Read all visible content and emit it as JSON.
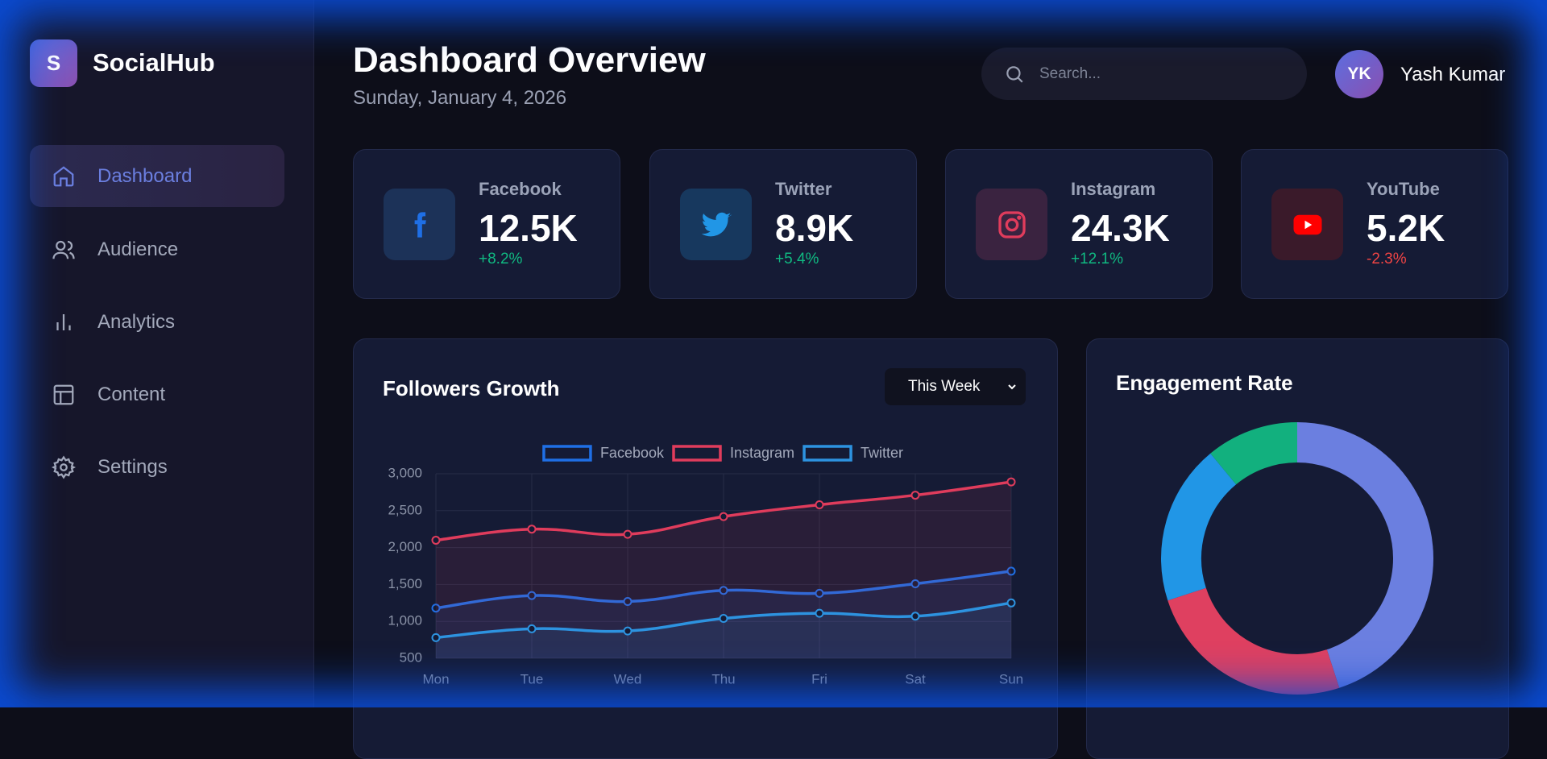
{
  "brand": {
    "logo": "S",
    "name": "SocialHub"
  },
  "nav": [
    "Dashboard",
    "Audience",
    "Analytics",
    "Content",
    "Settings"
  ],
  "header": {
    "title": "Dashboard Overview",
    "date": "Sunday, January 4, 2026",
    "search_placeholder": "Search...",
    "user_initials": "YK",
    "user_name": "Yash Kumar"
  },
  "stats": [
    {
      "platform": "Facebook",
      "value": "12.5K",
      "change": "+8.2%"
    },
    {
      "platform": "Twitter",
      "value": "8.9K",
      "change": "+5.4%"
    },
    {
      "platform": "Instagram",
      "value": "24.3K",
      "change": "+12.1%"
    },
    {
      "platform": "YouTube",
      "value": "5.2K",
      "change": "-2.3%"
    }
  ],
  "chart_data": [
    {
      "type": "line",
      "title": "Followers Growth",
      "period": "This Week",
      "categories": [
        "Mon",
        "Tue",
        "Wed",
        "Thu",
        "Fri",
        "Sat",
        "Sun"
      ],
      "series": [
        {
          "name": "Facebook",
          "color": "#1f6fe5",
          "values": [
            1180,
            1350,
            1270,
            1420,
            1380,
            1510,
            1680
          ]
        },
        {
          "name": "Instagram",
          "color": "#e03c5c",
          "values": [
            2100,
            2250,
            2180,
            2420,
            2580,
            2710,
            2890
          ]
        },
        {
          "name": "Twitter",
          "color": "#2d93e0",
          "values": [
            780,
            900,
            870,
            1040,
            1110,
            1070,
            1250
          ]
        }
      ],
      "ylim": [
        500,
        3000
      ],
      "yticks": [
        500,
        {
          "value": 1000,
          "label": "1,000"
        },
        {
          "value": 1500,
          "label": "1,500"
        },
        {
          "value": 2000,
          "label": "2,000"
        },
        {
          "value": 2500,
          "label": "2,500"
        },
        {
          "value": 3000,
          "label": "3,000"
        }
      ],
      "grid": true,
      "legend": "top",
      "fill": true
    },
    {
      "type": "donut",
      "title": "Engagement Rate",
      "values": [
        45,
        25,
        19,
        11
      ],
      "colors": [
        "#6b7fe0",
        "#df4060",
        "#2196e6",
        "#12b07e"
      ]
    }
  ]
}
